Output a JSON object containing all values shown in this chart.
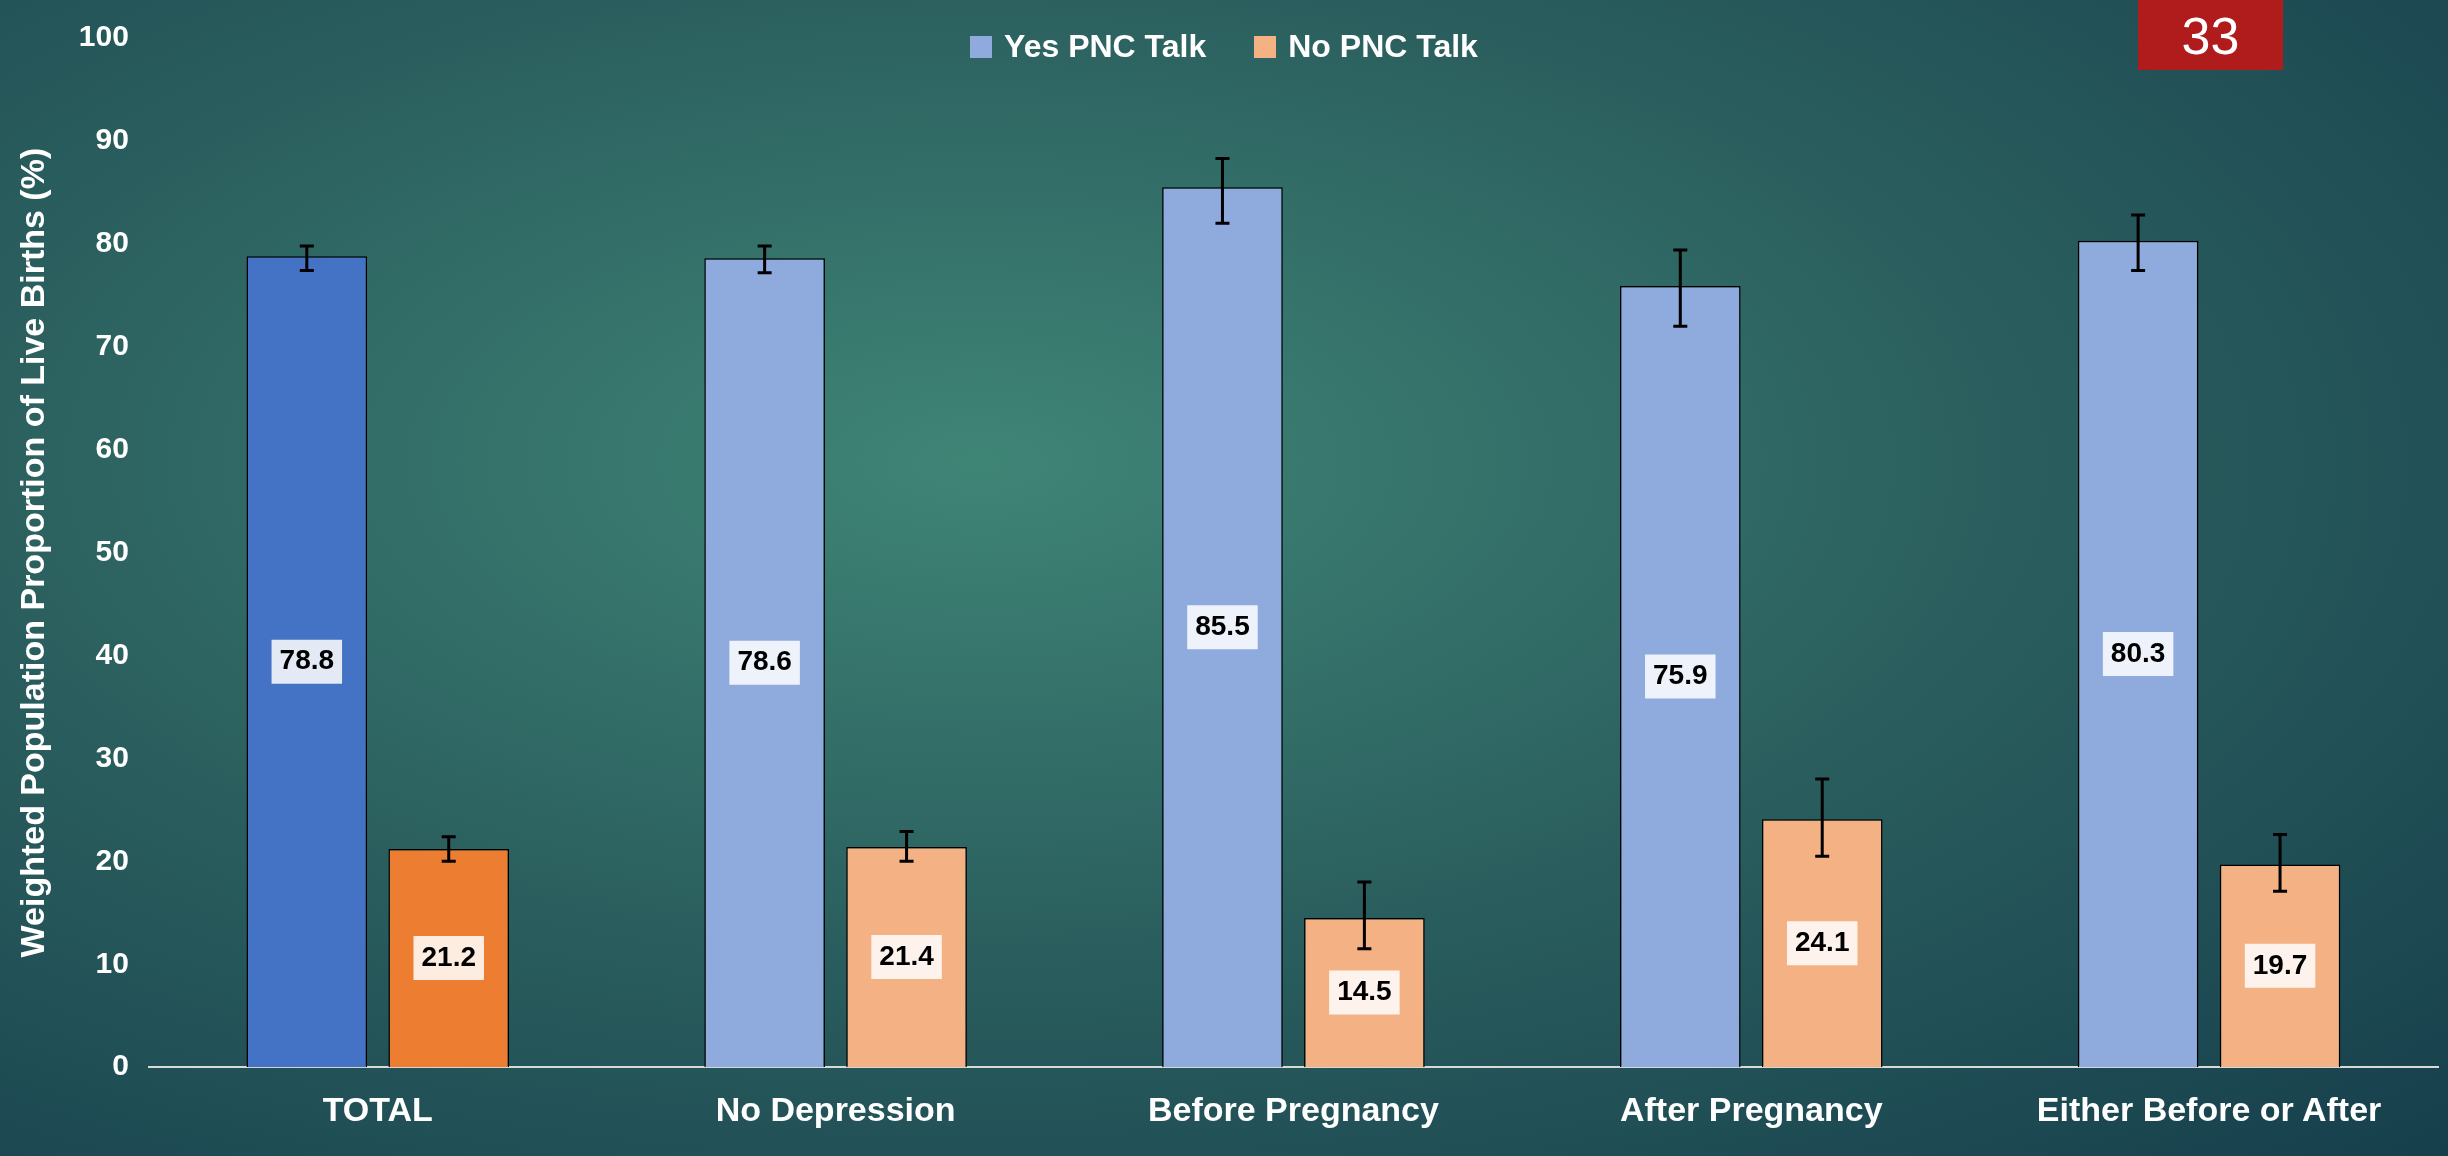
{
  "chart_data": {
    "type": "bar",
    "ylabel": "Weighted Population Proportion of Live Births (%)",
    "categories": [
      "TOTAL",
      "No Depression",
      "Before Pregnancy",
      "After Pregnancy",
      "Either Before or After"
    ],
    "series": [
      {
        "name": "Yes PNC Talk",
        "color": "#8faadc",
        "colors": [
          "#4472c4",
          "#8faadc",
          "#8faadc",
          "#8faadc",
          "#8faadc"
        ],
        "values": [
          78.8,
          78.6,
          85.5,
          75.9,
          80.3
        ],
        "errors": [
          [
            77.4,
            79.8
          ],
          [
            77.2,
            79.8
          ],
          [
            82.0,
            88.3
          ],
          [
            72.0,
            79.4
          ],
          [
            77.4,
            82.8
          ]
        ]
      },
      {
        "name": "No PNC Talk",
        "color": "#f4b183",
        "colors": [
          "#ed7d31",
          "#f4b183",
          "#f4b183",
          "#f4b183",
          "#f4b183"
        ],
        "values": [
          21.2,
          21.4,
          14.5,
          24.1,
          19.7
        ],
        "errors": [
          [
            20.0,
            22.4
          ],
          [
            20.0,
            22.9
          ],
          [
            11.5,
            18.0
          ],
          [
            20.5,
            28.0
          ],
          [
            17.1,
            22.6
          ]
        ]
      }
    ],
    "ylim": [
      0,
      100
    ],
    "yticks": [
      0,
      10,
      20,
      30,
      40,
      50,
      60,
      70,
      80,
      90,
      100
    ],
    "grid": false,
    "legend": "top",
    "data_labels": true,
    "annotations": [
      "33"
    ]
  }
}
